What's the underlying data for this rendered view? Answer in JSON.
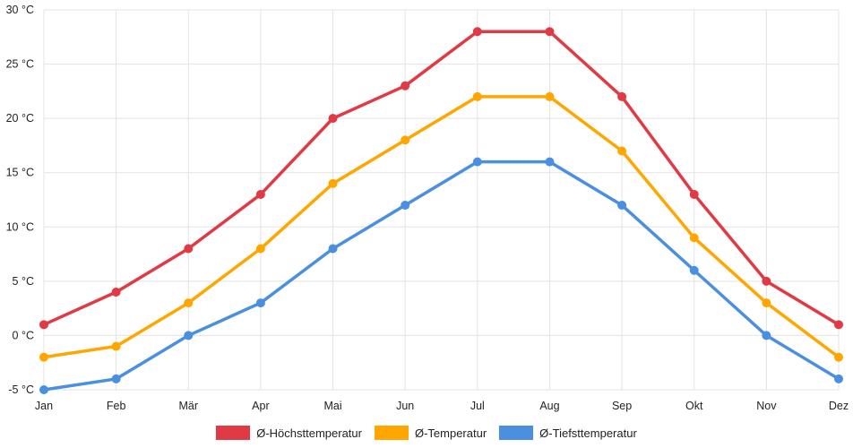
{
  "chart_data": {
    "type": "line",
    "categories": [
      "Jan",
      "Feb",
      "Mär",
      "Apr",
      "Mai",
      "Jun",
      "Jul",
      "Aug",
      "Sep",
      "Okt",
      "Nov",
      "Dez"
    ],
    "series": [
      {
        "name": "Ø-Höchsttemperatur",
        "color": "#e03a45",
        "values": [
          1,
          4,
          8,
          13,
          20,
          23,
          28,
          28,
          22,
          13,
          5,
          1
        ]
      },
      {
        "name": "Ø-Temperatur",
        "color": "#ffa600",
        "values": [
          -2,
          -1,
          3,
          8,
          14,
          18,
          22,
          22,
          17,
          9,
          3,
          -2
        ]
      },
      {
        "name": "Ø-Tiefsttemperatur",
        "color": "#4a8fe0",
        "values": [
          -5,
          -4,
          0,
          3,
          8,
          12,
          16,
          16,
          12,
          6,
          0,
          -4
        ]
      }
    ],
    "ylim": [
      -5,
      30
    ],
    "y_ticks": [
      -5,
      0,
      5,
      10,
      15,
      20,
      25,
      30
    ],
    "y_unit": "°C",
    "grid": true,
    "legend_position": "bottom"
  }
}
